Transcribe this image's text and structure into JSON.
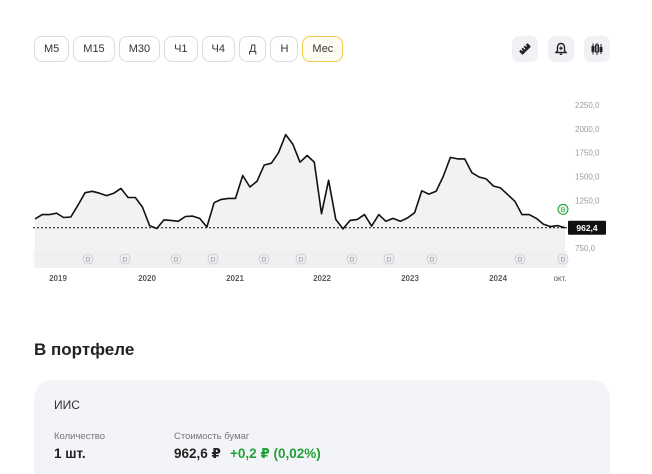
{
  "timeframes": [
    {
      "label": "М5",
      "active": false
    },
    {
      "label": "М15",
      "active": false
    },
    {
      "label": "М30",
      "active": false
    },
    {
      "label": "Ч1",
      "active": false
    },
    {
      "label": "Ч4",
      "active": false
    },
    {
      "label": "Д",
      "active": false
    },
    {
      "label": "Н",
      "active": false
    },
    {
      "label": "Мес",
      "active": true
    }
  ],
  "tools": [
    "ruler-icon",
    "price-alert-icon",
    "candlestick-icon"
  ],
  "chart_data": {
    "type": "line",
    "x_tick_labels": [
      "2019",
      "2020",
      "2021",
      "2022",
      "2023",
      "2024",
      "окт."
    ],
    "y_tick_labels": [
      "2250,0",
      "2000,0",
      "1750,0",
      "1500,0",
      "1250,0",
      "1000,0",
      "750,0"
    ],
    "ylim": [
      750,
      2250
    ],
    "series": [
      {
        "values": [
          1055,
          1100,
          1100,
          1115,
          1070,
          1075,
          1200,
          1330,
          1345,
          1325,
          1300,
          1325,
          1375,
          1280,
          1280,
          1180,
          985,
          955,
          1045,
          1040,
          1030,
          1080,
          1085,
          1060,
          970,
          1225,
          1260,
          1270,
          1270,
          1510,
          1390,
          1450,
          1620,
          1640,
          1750,
          1940,
          1840,
          1650,
          1720,
          1650,
          1110,
          1460,
          1050,
          950,
          1040,
          1050,
          1100,
          980,
          1100,
          1030,
          1060,
          1030,
          1065,
          1120,
          1350,
          1315,
          1345,
          1500,
          1700,
          1685,
          1685,
          1540,
          1495,
          1475,
          1400,
          1380,
          1310,
          1240,
          1100,
          1100,
          1060,
          1000,
          975,
          985,
          962.4
        ]
      }
    ],
    "last_price": 962.4,
    "last_price_label": "962,4",
    "dividend_markers": [
      "D",
      "D",
      "D",
      "D",
      "D",
      "D",
      "D",
      "D",
      "D",
      "D",
      "D"
    ],
    "bond_marker": "B",
    "colors": {
      "line": "#111111",
      "fill": "#eeeeee",
      "marker_green": "#21a038",
      "price_tag": "#111111"
    }
  },
  "portfolio": {
    "title": "В портфеле",
    "account": "ИИС",
    "quantity_label": "Количество",
    "quantity_value": "1 шт.",
    "value_label": "Стоимость бумаг",
    "value_amount": "962,6 ₽",
    "value_change": "+0,2 ₽ (0,02%)"
  }
}
